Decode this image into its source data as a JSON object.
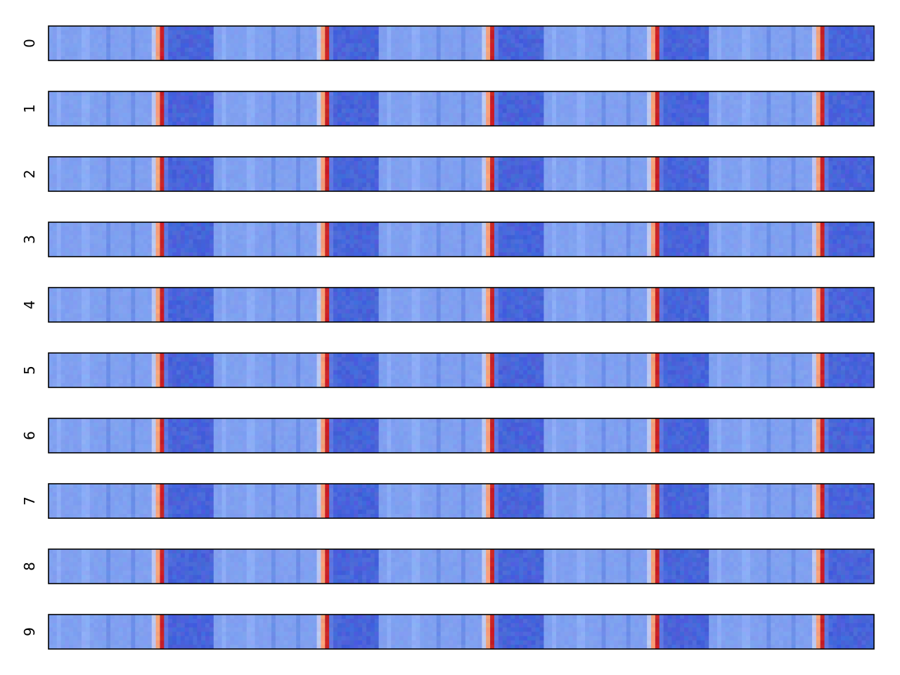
{
  "chart_data": {
    "type": "heatmap",
    "title": "",
    "xlabel": "",
    "ylabel": "",
    "colormap": "coolwarm",
    "x_ticks_visible": false,
    "rows": [
      {
        "label": "0"
      },
      {
        "label": "1"
      },
      {
        "label": "2"
      },
      {
        "label": "3"
      },
      {
        "label": "4"
      },
      {
        "label": "5"
      },
      {
        "label": "6"
      },
      {
        "label": "7"
      },
      {
        "label": "8"
      },
      {
        "label": "9"
      }
    ],
    "pattern": {
      "repeats": 5,
      "segment_profile": "light-blue plateau with faint vertical stripes, sharp orange-red spike, then dark-blue noisy block"
    }
  }
}
